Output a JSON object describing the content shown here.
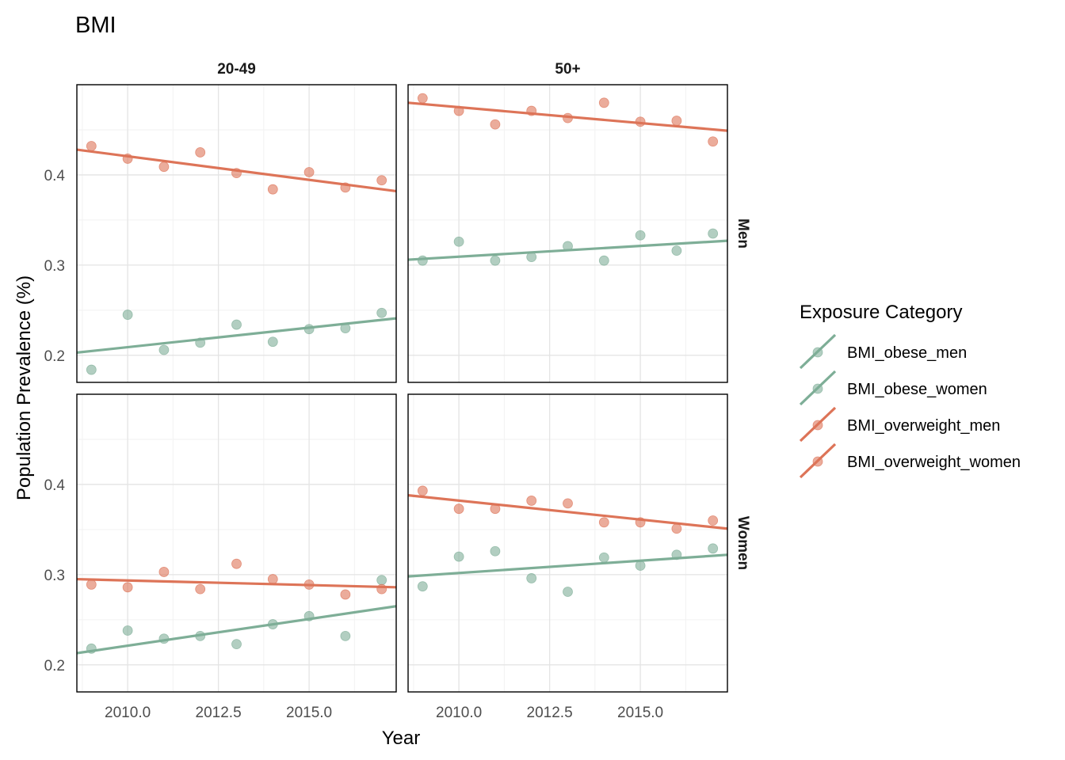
{
  "chart_data": {
    "type": "scatter",
    "title": "BMI",
    "xlabel": "Year",
    "ylabel": "Population Prevalence (%)",
    "xlim": [
      2008.6,
      2017.4
    ],
    "ylim": [
      0.17,
      0.5
    ],
    "xticks": [
      2010.0,
      2012.5,
      2015.0
    ],
    "xtick_labels": [
      "2010.0",
      "2012.5",
      "2015.0"
    ],
    "yticks": [
      0.2,
      0.3,
      0.4
    ],
    "ytick_labels": [
      "0.2",
      "0.3",
      "0.4"
    ],
    "grid": true,
    "legend_title": "Exposure Category",
    "legend_position": "right",
    "column_labels": [
      "20-49",
      "50+"
    ],
    "row_labels": [
      "Men",
      "Women"
    ],
    "colors": {
      "obese": "#7eae97",
      "overweight": "#dd7458"
    },
    "series": [
      {
        "name": "BMI_obese_men",
        "group": "obese"
      },
      {
        "name": "BMI_obese_women",
        "group": "obese"
      },
      {
        "name": "BMI_overweight_men",
        "group": "overweight"
      },
      {
        "name": "BMI_overweight_women",
        "group": "overweight"
      }
    ],
    "panels": [
      {
        "col": 0,
        "row": 0,
        "lines": [
          {
            "group": "obese",
            "x": [
              2008.6,
              2017.4
            ],
            "y": [
              0.203,
              0.241
            ]
          },
          {
            "group": "overweight",
            "x": [
              2008.6,
              2017.4
            ],
            "y": [
              0.428,
              0.382
            ]
          }
        ],
        "points": [
          {
            "group": "obese",
            "x": [
              2009,
              2010,
              2011,
              2012,
              2013,
              2014,
              2015,
              2016,
              2017
            ],
            "y": [
              0.184,
              0.245,
              0.206,
              0.214,
              0.234,
              0.215,
              0.229,
              0.23,
              0.247
            ]
          },
          {
            "group": "overweight",
            "x": [
              2009,
              2010,
              2011,
              2012,
              2013,
              2014,
              2015,
              2016,
              2017
            ],
            "y": [
              0.432,
              0.418,
              0.409,
              0.425,
              0.402,
              0.384,
              0.403,
              0.386,
              0.394
            ]
          }
        ]
      },
      {
        "col": 1,
        "row": 0,
        "lines": [
          {
            "group": "obese",
            "x": [
              2008.6,
              2017.4
            ],
            "y": [
              0.306,
              0.327
            ]
          },
          {
            "group": "overweight",
            "x": [
              2008.6,
              2017.4
            ],
            "y": [
              0.48,
              0.449
            ]
          }
        ],
        "points": [
          {
            "group": "obese",
            "x": [
              2009,
              2010,
              2011,
              2012,
              2013,
              2014,
              2015,
              2016,
              2017
            ],
            "y": [
              0.305,
              0.326,
              0.305,
              0.309,
              0.321,
              0.305,
              0.333,
              0.316,
              0.335
            ]
          },
          {
            "group": "overweight",
            "x": [
              2009,
              2010,
              2011,
              2012,
              2013,
              2014,
              2015,
              2016,
              2017
            ],
            "y": [
              0.485,
              0.471,
              0.456,
              0.471,
              0.463,
              0.48,
              0.459,
              0.46,
              0.437
            ]
          }
        ]
      },
      {
        "col": 0,
        "row": 1,
        "lines": [
          {
            "group": "obese",
            "x": [
              2008.6,
              2017.4
            ],
            "y": [
              0.213,
              0.265
            ]
          },
          {
            "group": "overweight",
            "x": [
              2008.6,
              2017.4
            ],
            "y": [
              0.295,
              0.286
            ]
          }
        ],
        "points": [
          {
            "group": "obese",
            "x": [
              2009,
              2010,
              2011,
              2012,
              2013,
              2014,
              2015,
              2016,
              2017
            ],
            "y": [
              0.218,
              0.238,
              0.229,
              0.232,
              0.223,
              0.245,
              0.254,
              0.232,
              0.294
            ]
          },
          {
            "group": "overweight",
            "x": [
              2009,
              2010,
              2011,
              2012,
              2013,
              2014,
              2015,
              2016,
              2017
            ],
            "y": [
              0.289,
              0.286,
              0.303,
              0.284,
              0.312,
              0.295,
              0.289,
              0.278,
              0.284
            ]
          }
        ]
      },
      {
        "col": 1,
        "row": 1,
        "lines": [
          {
            "group": "obese",
            "x": [
              2008.6,
              2017.4
            ],
            "y": [
              0.298,
              0.322
            ]
          },
          {
            "group": "overweight",
            "x": [
              2008.6,
              2017.4
            ],
            "y": [
              0.388,
              0.351
            ]
          }
        ],
        "points": [
          {
            "group": "obese",
            "x": [
              2009,
              2010,
              2011,
              2012,
              2013,
              2014,
              2015,
              2016,
              2017
            ],
            "y": [
              0.287,
              0.32,
              0.326,
              0.296,
              0.281,
              0.319,
              0.31,
              0.322,
              0.329
            ]
          },
          {
            "group": "overweight",
            "x": [
              2009,
              2010,
              2011,
              2012,
              2013,
              2014,
              2015,
              2016,
              2017
            ],
            "y": [
              0.393,
              0.373,
              0.373,
              0.382,
              0.379,
              0.358,
              0.358,
              0.351,
              0.36
            ]
          }
        ]
      }
    ]
  }
}
